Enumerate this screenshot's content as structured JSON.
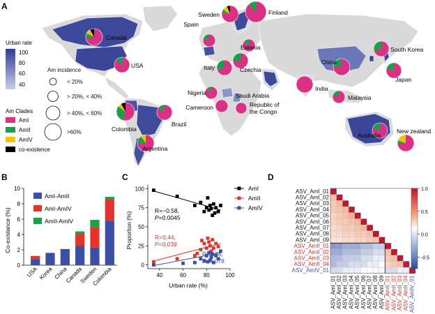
{
  "panels": {
    "A": {
      "letter": "A",
      "urban_legend": {
        "title": "Urban rate",
        "ticks": [
          "100",
          "80",
          "60",
          "40"
        ],
        "color_low": "#c8cdea",
        "color_high": "#2f3d92"
      },
      "incidence_legend": {
        "title": "Am incidence",
        "items": [
          "< 20%",
          "> 20%, < 40%",
          "> 40%, < 60%",
          ">60%"
        ]
      },
      "clade_legend": {
        "title": "Am Clades",
        "items": [
          {
            "label": "AmI",
            "color": "#dc2f86"
          },
          {
            "label": "AmII",
            "color": "#1ba04a"
          },
          {
            "label": "AmIV",
            "color": "#f5c400"
          },
          {
            "label": "co-existence",
            "color": "#000000"
          }
        ]
      },
      "countries": [
        {
          "name": "Canada",
          "pie": [
            0.72,
            0.1,
            0.1,
            0.08
          ]
        },
        {
          "name": "USA",
          "pie": [
            0.85,
            0.15,
            0.0,
            0.0
          ]
        },
        {
          "name": "Sweden",
          "pie": [
            0.78,
            0.06,
            0.1,
            0.06
          ]
        },
        {
          "name": "Finland",
          "pie": [
            0.88,
            0.12,
            0.0,
            0.0
          ]
        },
        {
          "name": "Spain",
          "pie": [
            0.8,
            0.2,
            0.0,
            0.0
          ]
        },
        {
          "name": "Estonia",
          "pie": [
            0.85,
            0.15,
            0.0,
            0.0
          ]
        },
        {
          "name": "Italy",
          "pie": [
            0.7,
            0.3,
            0.0,
            0.0
          ]
        },
        {
          "name": "Czechia",
          "pie": [
            0.75,
            0.25,
            0.0,
            0.0
          ]
        },
        {
          "name": "Nigeria",
          "pie": [
            0.9,
            0.1,
            0.0,
            0.0
          ]
        },
        {
          "name": "Cameroon",
          "pie": [
            1.0,
            0.0,
            0.0,
            0.0
          ]
        },
        {
          "name": "Republic of\nthe Congo",
          "pie": [
            1.0,
            0.0,
            0.0,
            0.0
          ]
        },
        {
          "name": "Saudi Arabia",
          "pie": [
            0.0,
            0.0,
            0.0,
            0.0
          ]
        },
        {
          "name": "India",
          "pie": [
            1.0,
            0.0,
            0.0,
            0.0
          ]
        },
        {
          "name": "China",
          "pie": [
            0.75,
            0.25,
            0.0,
            0.0
          ]
        },
        {
          "name": "South Korea",
          "pie": [
            0.7,
            0.3,
            0.0,
            0.0
          ]
        },
        {
          "name": "Japan",
          "pie": [
            0.8,
            0.2,
            0.0,
            0.0
          ]
        },
        {
          "name": "Malaysia",
          "pie": [
            0.8,
            0.2,
            0.0,
            0.0
          ]
        },
        {
          "name": "Colombia",
          "pie": [
            0.55,
            0.3,
            0.07,
            0.08
          ]
        },
        {
          "name": "Brazil",
          "pie": [
            0.85,
            0.15,
            0.0,
            0.0
          ]
        },
        {
          "name": "Argentina",
          "pie": [
            0.75,
            0.15,
            0.1,
            0.0
          ]
        },
        {
          "name": "Australia",
          "pie": [
            0.8,
            0.2,
            0.0,
            0.0
          ]
        },
        {
          "name": "New zealand",
          "pie": [
            0.75,
            0.05,
            0.2,
            0.0
          ]
        }
      ]
    },
    "B": {
      "letter": "B"
    },
    "C": {
      "letter": "C"
    },
    "D": {
      "letter": "D"
    }
  },
  "chart_data": [
    {
      "type": "bar",
      "panel": "B",
      "ylabel": "Co-existance (%)",
      "ylim": [
        0,
        10
      ],
      "yticks": [
        0,
        2,
        4,
        6,
        8,
        10
      ],
      "categories": [
        "USA",
        "Korea",
        "China",
        "Canada",
        "Sweden",
        "Colombia"
      ],
      "series": [
        {
          "name": "AmI-AmII",
          "color": "#3b4fa3",
          "values": [
            0.8,
            1.6,
            2.1,
            2.5,
            2.3,
            5.8
          ]
        },
        {
          "name": "AmI-AmIV",
          "color": "#e6332a",
          "values": [
            0.4,
            0.0,
            0.0,
            1.6,
            2.6,
            2.8
          ]
        },
        {
          "name": "AmII-AmIV",
          "color": "#1ba04a",
          "values": [
            0.0,
            0.0,
            0.0,
            0.3,
            1.0,
            0.3
          ]
        }
      ]
    },
    {
      "type": "scatter",
      "panel": "C",
      "xlabel": "Urban rate (%)",
      "ylabel": "Proportion (%)",
      "xlim": [
        30,
        100
      ],
      "ylim": [
        -5,
        105
      ],
      "xticks": [
        40,
        60,
        80,
        100
      ],
      "yticks": [
        0,
        25,
        50,
        75,
        100
      ],
      "series": [
        {
          "name": "AmI",
          "color": "#000000",
          "marker": "square",
          "points": [
            [
              35,
              98
            ],
            [
              55,
              90
            ],
            [
              70,
              78
            ],
            [
              75,
              82
            ],
            [
              78,
              70
            ],
            [
              80,
              75
            ],
            [
              81,
              88
            ],
            [
              82,
              72
            ],
            [
              83,
              78
            ],
            [
              84,
              74
            ],
            [
              85,
              65
            ],
            [
              86,
              80
            ],
            [
              87,
              68
            ],
            [
              88,
              75
            ],
            [
              90,
              70
            ],
            [
              92,
              78
            ]
          ],
          "fit": [
            [
              35,
              97
            ],
            [
              92,
              72
            ]
          ]
        },
        {
          "name": "AmII",
          "color": "#e6332a",
          "marker": "square",
          "points": [
            [
              35,
              4
            ],
            [
              55,
              8
            ],
            [
              70,
              12
            ],
            [
              72,
              15
            ],
            [
              75,
              20
            ],
            [
              76,
              32
            ],
            [
              78,
              28
            ],
            [
              80,
              22
            ],
            [
              81,
              35
            ],
            [
              82,
              30
            ],
            [
              83,
              25
            ],
            [
              84,
              18
            ],
            [
              85,
              33
            ],
            [
              86,
              22
            ],
            [
              88,
              28
            ],
            [
              90,
              24
            ]
          ],
          "fit": [
            [
              35,
              5
            ],
            [
              92,
              28
            ]
          ],
          "stat": [
            "R=0.44,",
            "P=0.039"
          ]
        },
        {
          "name": "AmIV",
          "color": "#3b4fa3",
          "marker": "square",
          "points": [
            [
              35,
              0
            ],
            [
              60,
              2
            ],
            [
              70,
              3
            ],
            [
              75,
              8
            ],
            [
              78,
              5
            ],
            [
              80,
              12
            ],
            [
              81,
              4
            ],
            [
              82,
              16
            ],
            [
              83,
              6
            ],
            [
              84,
              10
            ],
            [
              85,
              14
            ],
            [
              86,
              3
            ],
            [
              88,
              12
            ],
            [
              90,
              8
            ],
            [
              92,
              18
            ]
          ],
          "fit": [
            [
              35,
              -1
            ],
            [
              92,
              16
            ]
          ],
          "stat": [
            "R=0.38,",
            "P=0.078"
          ]
        }
      ],
      "black_stat": [
        "R=−0.58,",
        "P=0.0045"
      ]
    },
    {
      "type": "heatmap",
      "panel": "D",
      "labels": [
        {
          "text": "ASV_AmI_01",
          "color": "#111111"
        },
        {
          "text": "ASV_AmI_02",
          "color": "#111111"
        },
        {
          "text": "ASV_AmI_03",
          "color": "#111111"
        },
        {
          "text": "ASV_AmI_04",
          "color": "#111111"
        },
        {
          "text": "ASV_AmI_05",
          "color": "#111111"
        },
        {
          "text": "ASV_AmI_06",
          "color": "#111111"
        },
        {
          "text": "ASV_AmI_07",
          "color": "#111111"
        },
        {
          "text": "ASV_AmI_08",
          "color": "#111111"
        },
        {
          "text": "ASV_AmI_09",
          "color": "#111111"
        },
        {
          "text": "ASV_AmII_01",
          "color": "#d7302a"
        },
        {
          "text": "ASV_AmII_02",
          "color": "#d7302a"
        },
        {
          "text": "ASV_AmII_03",
          "color": "#d7302a"
        },
        {
          "text": "ASV_AmII_04",
          "color": "#d7302a"
        },
        {
          "text": "ASV_AmIV_01",
          "color": "#3b4fa3"
        }
      ],
      "colorbar_ticks": [
        1.0,
        0.5,
        0.0,
        -0.5
      ],
      "lower_triangle": [
        [],
        [
          0.35
        ],
        [
          0.3,
          0.4
        ],
        [
          0.3,
          0.35,
          0.4
        ],
        [
          0.25,
          0.3,
          0.35,
          0.45
        ],
        [
          0.25,
          0.3,
          0.3,
          0.35,
          0.4
        ],
        [
          0.2,
          0.25,
          0.3,
          0.3,
          0.35,
          0.4
        ],
        [
          0.2,
          0.2,
          0.25,
          0.25,
          0.3,
          0.3,
          0.35
        ],
        [
          0.15,
          0.15,
          0.2,
          0.2,
          0.25,
          0.25,
          0.3,
          0.35
        ],
        [
          -0.3,
          -0.3,
          -0.25,
          -0.25,
          -0.25,
          -0.2,
          -0.2,
          -0.15,
          -0.15
        ],
        [
          -0.25,
          -0.25,
          -0.2,
          -0.2,
          -0.2,
          -0.15,
          -0.15,
          -0.1,
          -0.1,
          0.35
        ],
        [
          -0.2,
          -0.2,
          -0.15,
          -0.15,
          -0.15,
          -0.1,
          -0.1,
          -0.05,
          -0.05,
          0.3,
          0.35
        ],
        [
          -0.2,
          -0.15,
          -0.15,
          -0.1,
          -0.1,
          -0.1,
          -0.05,
          -0.05,
          0.0,
          0.25,
          0.3,
          0.35
        ],
        [
          -0.1,
          -0.1,
          -0.05,
          -0.05,
          -0.05,
          0.0,
          0.0,
          0.05,
          0.05,
          -0.1,
          -0.1,
          -0.05,
          -0.05
        ]
      ]
    }
  ]
}
